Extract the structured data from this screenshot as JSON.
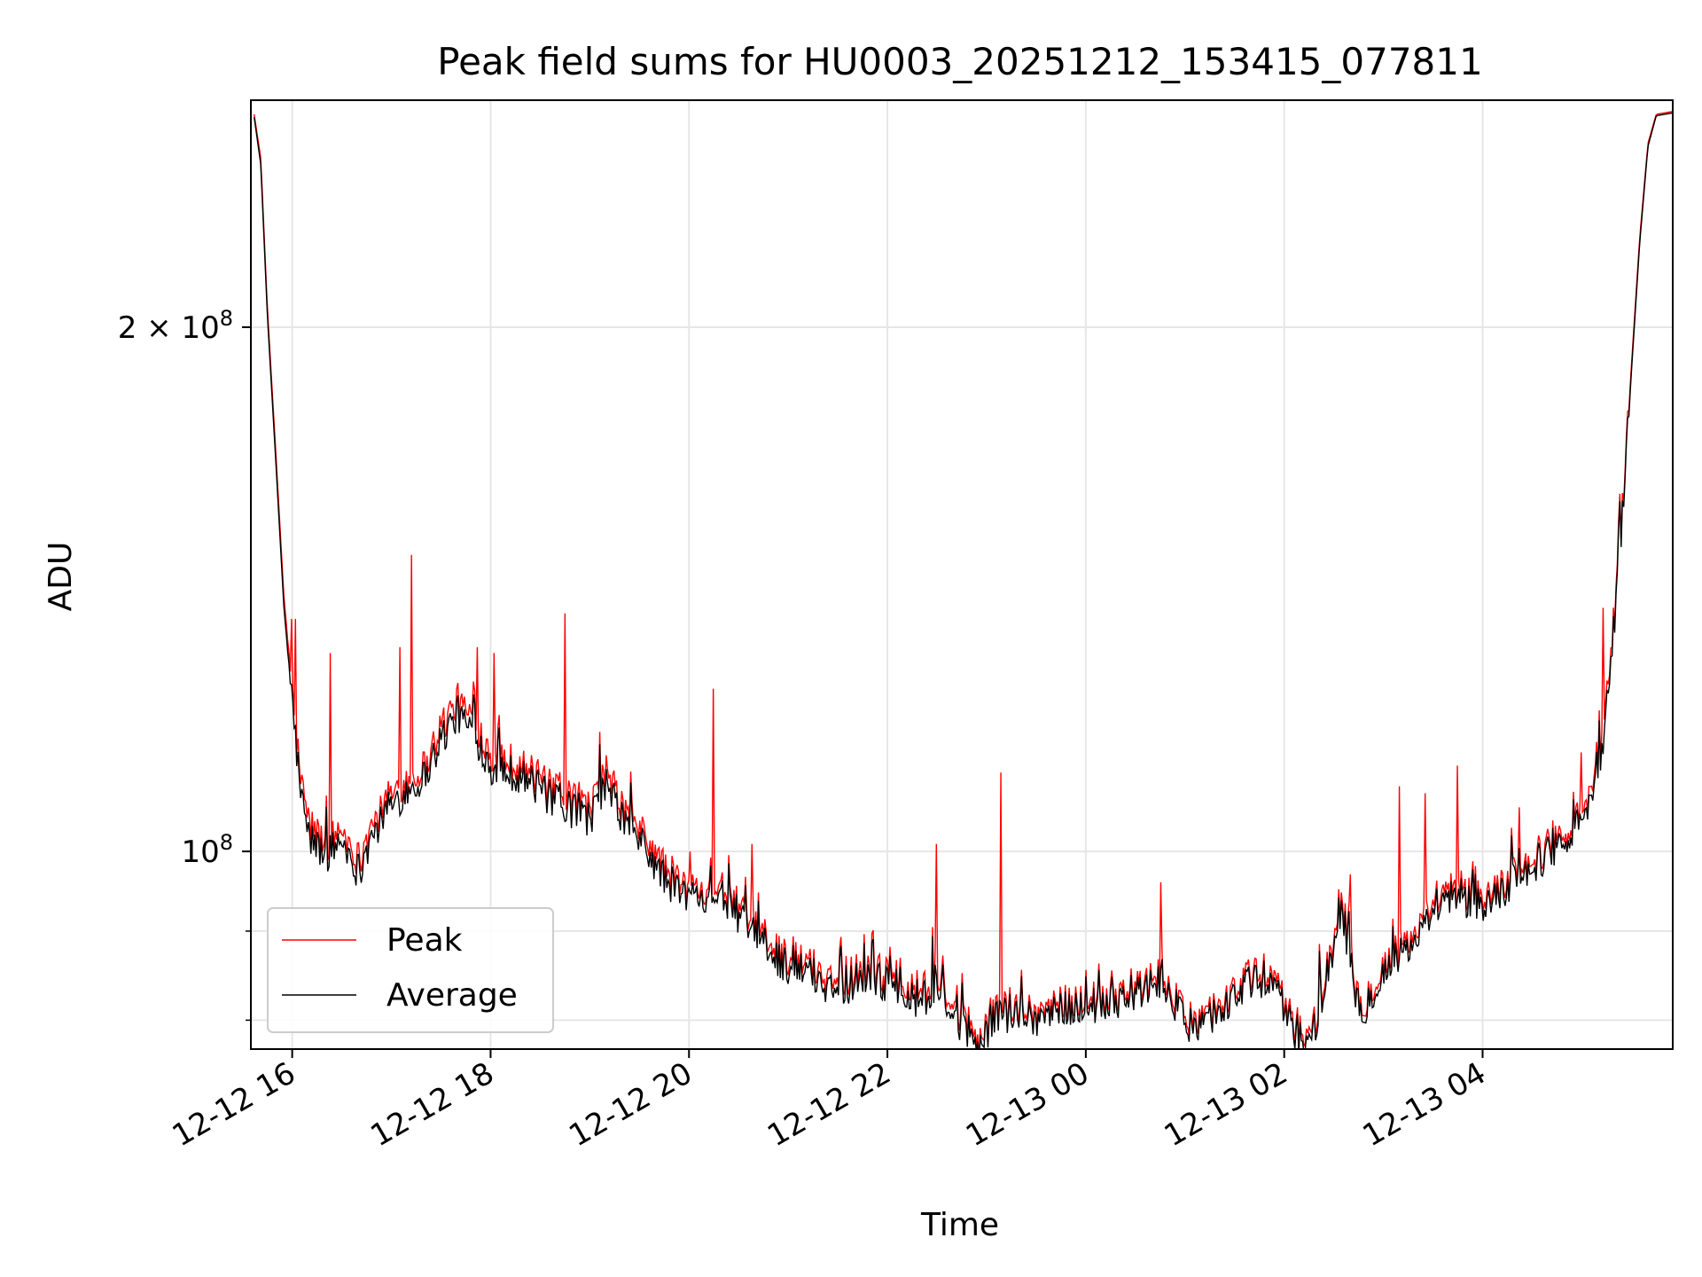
{
  "chart_data": {
    "type": "line",
    "title": "Peak field sums for HU0003_20251212_153415_077811",
    "xlabel": "Time",
    "ylabel": "ADU",
    "yscale": "log",
    "ylim": [
      77000000,
      270000000
    ],
    "xlim": [
      "2025-12-12 15:35",
      "2025-12-13 05:55"
    ],
    "grid": true,
    "legend": {
      "position": "lower-left",
      "entries": [
        "Peak",
        "Average"
      ]
    },
    "x_ticks": [
      "12-12 16",
      "12-12 18",
      "12-12 20",
      "12-12 22",
      "12-13 00",
      "12-13 02",
      "12-13 04"
    ],
    "y_ticks": [
      {
        "value": 200000000,
        "mantissa": "2",
        "exponent": "8"
      },
      {
        "value": 100000000,
        "mantissa": "",
        "exponent": "8"
      }
    ],
    "y_minor_ticks": [
      80000000,
      90000000
    ],
    "series": [
      {
        "name": "Peak",
        "color": "#ff0000",
        "points": [
          [
            "2025-12-12 15:37",
            265000000
          ],
          [
            "2025-12-12 15:41",
            250000000
          ],
          [
            "2025-12-12 15:45",
            205000000
          ],
          [
            "2025-12-12 15:50",
            170000000
          ],
          [
            "2025-12-12 15:55",
            140000000
          ],
          [
            "2025-12-12 16:00",
            124000000
          ],
          [
            "2025-12-12 16:05",
            110000000
          ],
          [
            "2025-12-12 16:10",
            104000000
          ],
          [
            "2025-12-12 16:20",
            101000000
          ],
          [
            "2025-12-12 16:30",
            103000000
          ],
          [
            "2025-12-12 16:40",
            99000000
          ],
          [
            "2025-12-12 16:50",
            104000000
          ],
          [
            "2025-12-12 17:00",
            108000000
          ],
          [
            "2025-12-12 17:10",
            110000000
          ],
          [
            "2025-12-12 17:20",
            112000000
          ],
          [
            "2025-12-12 17:30",
            118000000
          ],
          [
            "2025-12-12 17:40",
            122000000
          ],
          [
            "2025-12-12 17:50",
            119000000
          ],
          [
            "2025-12-12 18:00",
            114000000
          ],
          [
            "2025-12-12 18:20",
            112000000
          ],
          [
            "2025-12-12 18:40",
            108000000
          ],
          [
            "2025-12-12 19:00",
            106000000
          ],
          [
            "2025-12-12 19:10",
            111000000
          ],
          [
            "2025-12-12 19:20",
            106000000
          ],
          [
            "2025-12-12 19:30",
            103000000
          ],
          [
            "2025-12-12 19:45",
            98000000
          ],
          [
            "2025-12-12 20:00",
            95000000
          ],
          [
            "2025-12-12 20:15",
            96000000
          ],
          [
            "2025-12-12 20:30",
            93000000
          ],
          [
            "2025-12-12 20:45",
            89000000
          ],
          [
            "2025-12-12 21:00",
            87000000
          ],
          [
            "2025-12-12 21:15",
            86000000
          ],
          [
            "2025-12-12 21:30",
            84000000
          ],
          [
            "2025-12-12 21:45",
            86000000
          ],
          [
            "2025-12-12 22:00",
            85000000
          ],
          [
            "2025-12-12 22:15",
            83000000
          ],
          [
            "2025-12-12 22:30",
            84000000
          ],
          [
            "2025-12-12 22:45",
            80000000
          ],
          [
            "2025-12-12 22:55",
            77500000
          ],
          [
            "2025-12-12 23:05",
            81500000
          ],
          [
            "2025-12-12 23:30",
            81000000
          ],
          [
            "2025-12-12 23:50",
            82000000
          ],
          [
            "2025-12-13 00:10",
            82500000
          ],
          [
            "2025-12-13 00:30",
            83500000
          ],
          [
            "2025-12-13 00:45",
            85000000
          ],
          [
            "2025-12-13 00:55",
            82000000
          ],
          [
            "2025-12-13 01:00",
            80000000
          ],
          [
            "2025-12-13 01:20",
            81500000
          ],
          [
            "2025-12-13 01:40",
            85000000
          ],
          [
            "2025-12-13 01:55",
            84000000
          ],
          [
            "2025-12-13 02:05",
            80000000
          ],
          [
            "2025-12-13 02:15",
            77500000
          ],
          [
            "2025-12-13 02:25",
            85000000
          ],
          [
            "2025-12-13 02:35",
            94000000
          ],
          [
            "2025-12-13 02:45",
            81000000
          ],
          [
            "2025-12-13 03:00",
            86000000
          ],
          [
            "2025-12-13 03:20",
            90000000
          ],
          [
            "2025-12-13 03:40",
            95000000
          ],
          [
            "2025-12-13 04:00",
            94000000
          ],
          [
            "2025-12-13 04:20",
            97000000
          ],
          [
            "2025-12-13 04:40",
            101000000
          ],
          [
            "2025-12-13 05:00",
            105000000
          ],
          [
            "2025-12-13 05:10",
            112000000
          ],
          [
            "2025-12-13 05:15",
            122000000
          ],
          [
            "2025-12-13 05:20",
            138000000
          ],
          [
            "2025-12-13 05:25",
            160000000
          ],
          [
            "2025-12-13 05:30",
            190000000
          ],
          [
            "2025-12-13 05:35",
            225000000
          ],
          [
            "2025-12-13 05:40",
            255000000
          ],
          [
            "2025-12-13 05:45",
            265000000
          ],
          [
            "2025-12-13 05:55",
            266000000
          ]
        ],
        "spikes": [
          [
            "2025-12-12 16:00",
            136000000
          ],
          [
            "2025-12-12 16:02",
            136000000
          ],
          [
            "2025-12-12 16:23",
            130000000
          ],
          [
            "2025-12-12 17:05",
            131000000
          ],
          [
            "2025-12-12 17:12",
            148000000
          ],
          [
            "2025-12-12 17:52",
            131000000
          ],
          [
            "2025-12-12 18:02",
            130000000
          ],
          [
            "2025-12-12 18:45",
            137000000
          ],
          [
            "2025-12-12 20:01",
            100000000
          ],
          [
            "2025-12-12 20:15",
            124000000
          ],
          [
            "2025-12-12 20:38",
            101000000
          ],
          [
            "2025-12-12 22:30",
            101000000
          ],
          [
            "2025-12-12 23:09",
            111000000
          ],
          [
            "2025-12-13 00:45",
            96000000
          ],
          [
            "2025-12-13 02:40",
            97000000
          ],
          [
            "2025-12-13 03:10",
            109000000
          ],
          [
            "2025-12-13 03:25",
            108000000
          ],
          [
            "2025-12-13 03:45",
            112000000
          ],
          [
            "2025-12-13 04:22",
            106000000
          ],
          [
            "2025-12-13 05:00",
            114000000
          ],
          [
            "2025-12-13 05:13",
            138000000
          ]
        ]
      },
      {
        "name": "Average",
        "color": "#000000",
        "points": [
          [
            "2025-12-12 15:37",
            264000000
          ],
          [
            "2025-12-12 15:41",
            248000000
          ],
          [
            "2025-12-12 15:45",
            203000000
          ],
          [
            "2025-12-12 15:50",
            168000000
          ],
          [
            "2025-12-12 15:55",
            138000000
          ],
          [
            "2025-12-12 16:00",
            122000000
          ],
          [
            "2025-12-12 16:05",
            108000000
          ],
          [
            "2025-12-12 16:10",
            102000000
          ],
          [
            "2025-12-12 16:20",
            99500000
          ],
          [
            "2025-12-12 16:30",
            101500000
          ],
          [
            "2025-12-12 16:40",
            97500000
          ],
          [
            "2025-12-12 16:50",
            102500000
          ],
          [
            "2025-12-12 17:00",
            106500000
          ],
          [
            "2025-12-12 17:10",
            108500000
          ],
          [
            "2025-12-12 17:20",
            110500000
          ],
          [
            "2025-12-12 17:30",
            116000000
          ],
          [
            "2025-12-12 17:40",
            120000000
          ],
          [
            "2025-12-12 17:50",
            117000000
          ],
          [
            "2025-12-12 18:00",
            112000000
          ],
          [
            "2025-12-12 18:20",
            110500000
          ],
          [
            "2025-12-12 18:40",
            106500000
          ],
          [
            "2025-12-12 19:00",
            104500000
          ],
          [
            "2025-12-12 19:10",
            109000000
          ],
          [
            "2025-12-12 19:20",
            104500000
          ],
          [
            "2025-12-12 19:30",
            101500000
          ],
          [
            "2025-12-12 19:45",
            96500000
          ],
          [
            "2025-12-12 20:00",
            94000000
          ],
          [
            "2025-12-12 20:15",
            95000000
          ],
          [
            "2025-12-12 20:30",
            92000000
          ],
          [
            "2025-12-12 20:45",
            88000000
          ],
          [
            "2025-12-12 21:00",
            86000000
          ],
          [
            "2025-12-12 21:15",
            85000000
          ],
          [
            "2025-12-12 21:30",
            83000000
          ],
          [
            "2025-12-12 21:45",
            85000000
          ],
          [
            "2025-12-12 22:00",
            84000000
          ],
          [
            "2025-12-12 22:15",
            82000000
          ],
          [
            "2025-12-12 22:30",
            83000000
          ],
          [
            "2025-12-12 22:45",
            79000000
          ],
          [
            "2025-12-12 22:55",
            76800000
          ],
          [
            "2025-12-12 23:05",
            80800000
          ],
          [
            "2025-12-12 23:30",
            80300000
          ],
          [
            "2025-12-12 23:50",
            81300000
          ],
          [
            "2025-12-13 00:10",
            81800000
          ],
          [
            "2025-12-13 00:30",
            82800000
          ],
          [
            "2025-12-13 00:45",
            84200000
          ],
          [
            "2025-12-13 00:55",
            81300000
          ],
          [
            "2025-12-13 01:00",
            79300000
          ],
          [
            "2025-12-13 01:20",
            80800000
          ],
          [
            "2025-12-13 01:40",
            84200000
          ],
          [
            "2025-12-13 01:55",
            83200000
          ],
          [
            "2025-12-13 02:05",
            79300000
          ],
          [
            "2025-12-13 02:15",
            76800000
          ],
          [
            "2025-12-13 02:25",
            84200000
          ],
          [
            "2025-12-13 02:35",
            93000000
          ],
          [
            "2025-12-13 02:45",
            80300000
          ],
          [
            "2025-12-13 03:00",
            85200000
          ],
          [
            "2025-12-13 03:20",
            89000000
          ],
          [
            "2025-12-13 03:40",
            94000000
          ],
          [
            "2025-12-13 04:00",
            93000000
          ],
          [
            "2025-12-13 04:20",
            96000000
          ],
          [
            "2025-12-13 04:40",
            100000000
          ],
          [
            "2025-12-13 05:00",
            104000000
          ],
          [
            "2025-12-13 05:10",
            110500000
          ],
          [
            "2025-12-13 05:15",
            120500000
          ],
          [
            "2025-12-13 05:20",
            136500000
          ],
          [
            "2025-12-13 05:25",
            158500000
          ],
          [
            "2025-12-13 05:30",
            188500000
          ],
          [
            "2025-12-13 05:35",
            223500000
          ],
          [
            "2025-12-13 05:40",
            254000000
          ],
          [
            "2025-12-13 05:45",
            264500000
          ],
          [
            "2025-12-13 05:55",
            265500000
          ]
        ]
      }
    ]
  }
}
